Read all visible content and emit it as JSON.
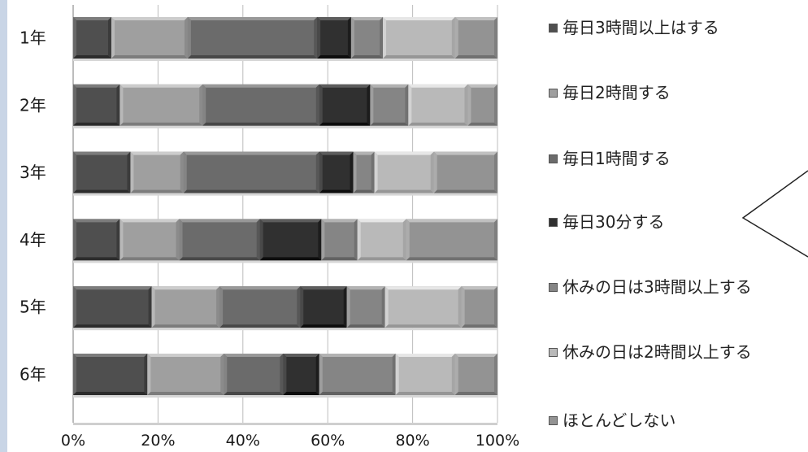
{
  "chart_data": {
    "type": "bar",
    "orientation": "horizontal",
    "stacked": "percent",
    "categories": [
      "1年",
      "2年",
      "3年",
      "4年",
      "5年",
      "6年"
    ],
    "series": [
      {
        "name": "毎日3時間以上はする",
        "color": "#4f4f4f",
        "values": [
          9,
          11,
          13.5,
          11,
          18.5,
          17.5
        ]
      },
      {
        "name": "毎日2時間する",
        "color": "#9f9f9f",
        "values": [
          18,
          19.5,
          12.5,
          14,
          16,
          18
        ]
      },
      {
        "name": "毎日1時間する",
        "color": "#6b6b6b",
        "values": [
          30.5,
          27.5,
          32,
          19,
          19,
          14
        ]
      },
      {
        "name": "毎日30分する",
        "color": "#303030",
        "values": [
          8,
          12,
          8,
          14.5,
          11,
          8.5
        ]
      },
      {
        "name": "休みの日は3時間以上する",
        "color": "#858585",
        "values": [
          7.5,
          9,
          5,
          8.5,
          9,
          18
        ]
      },
      {
        "name": "休みの日は2時間以上する",
        "color": "#b9b9b9",
        "values": [
          17,
          14,
          14,
          11.5,
          18,
          14
        ]
      },
      {
        "name": "ほとんどしない",
        "color": "#939393",
        "values": [
          10,
          7,
          15,
          21.5,
          8.5,
          10
        ]
      }
    ],
    "x_ticks": [
      "0%",
      "20%",
      "40%",
      "60%",
      "80%",
      "100%"
    ],
    "xlim": [
      0,
      100
    ],
    "grid": "vertical",
    "legend_position": "right"
  }
}
